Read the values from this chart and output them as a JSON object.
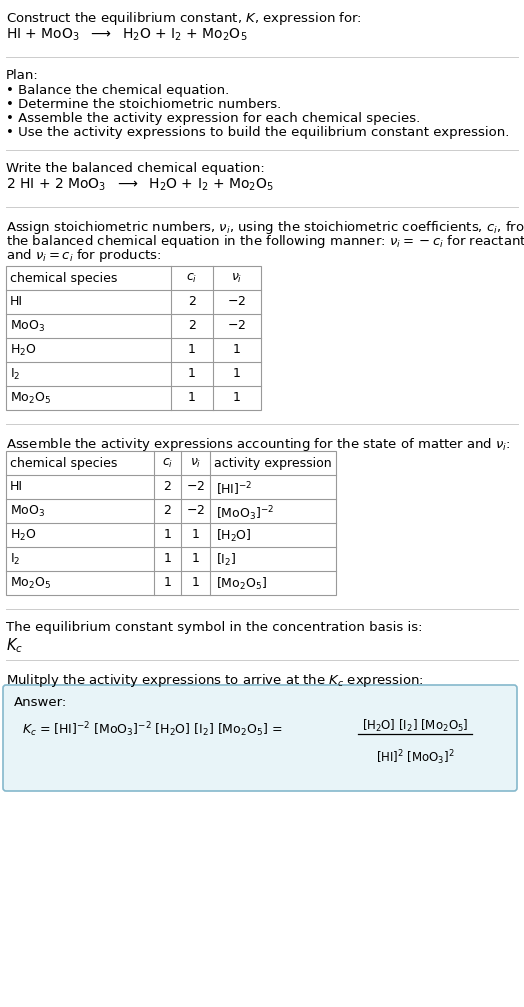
{
  "title_line1": "Construct the equilibrium constant, $K$, expression for:",
  "reaction_unbalanced": "HI + MoO$_3$  $\\longrightarrow$  H$_2$O + I$_2$ + Mo$_2$O$_5$",
  "plan_header": "Plan:",
  "plan_items": [
    "• Balance the chemical equation.",
    "• Determine the stoichiometric numbers.",
    "• Assemble the activity expression for each chemical species.",
    "• Use the activity expressions to build the equilibrium constant expression."
  ],
  "balanced_header": "Write the balanced chemical equation:",
  "reaction_balanced": "2 HI + 2 MoO$_3$  $\\longrightarrow$  H$_2$O + I$_2$ + Mo$_2$O$_5$",
  "stoich_header_lines": [
    "Assign stoichiometric numbers, $\\nu_i$, using the stoichiometric coefficients, $c_i$, from",
    "the balanced chemical equation in the following manner: $\\nu_i = -c_i$ for reactants",
    "and $\\nu_i = c_i$ for products:"
  ],
  "table1_headers": [
    "chemical species",
    "$c_i$",
    "$\\nu_i$"
  ],
  "table1_rows": [
    [
      "HI",
      "2",
      "$-$2"
    ],
    [
      "MoO$_3$",
      "2",
      "$-$2"
    ],
    [
      "H$_2$O",
      "1",
      "1"
    ],
    [
      "I$_2$",
      "1",
      "1"
    ],
    [
      "Mo$_2$O$_5$",
      "1",
      "1"
    ]
  ],
  "activity_header": "Assemble the activity expressions accounting for the state of matter and $\\nu_i$:",
  "table2_headers": [
    "chemical species",
    "$c_i$",
    "$\\nu_i$",
    "activity expression"
  ],
  "table2_rows": [
    [
      "HI",
      "2",
      "$-$2",
      "[HI]$^{-2}$"
    ],
    [
      "MoO$_3$",
      "2",
      "$-$2",
      "[MoO$_3$]$^{-2}$"
    ],
    [
      "H$_2$O",
      "1",
      "1",
      "[H$_2$O]"
    ],
    [
      "I$_2$",
      "1",
      "1",
      "[I$_2$]"
    ],
    [
      "Mo$_2$O$_5$",
      "1",
      "1",
      "[Mo$_2$O$_5$]"
    ]
  ],
  "kc_header": "The equilibrium constant symbol in the concentration basis is:",
  "kc_symbol": "$K_c$",
  "multiply_header": "Mulitply the activity expressions to arrive at the $K_c$ expression:",
  "answer_label": "Answer:",
  "bg_color": "#ffffff",
  "text_color": "#000000",
  "table_border_color": "#999999",
  "answer_box_facecolor": "#e8f4f8",
  "answer_box_edgecolor": "#85b8cc",
  "font_size": 9.5,
  "divider_color": "#cccccc"
}
